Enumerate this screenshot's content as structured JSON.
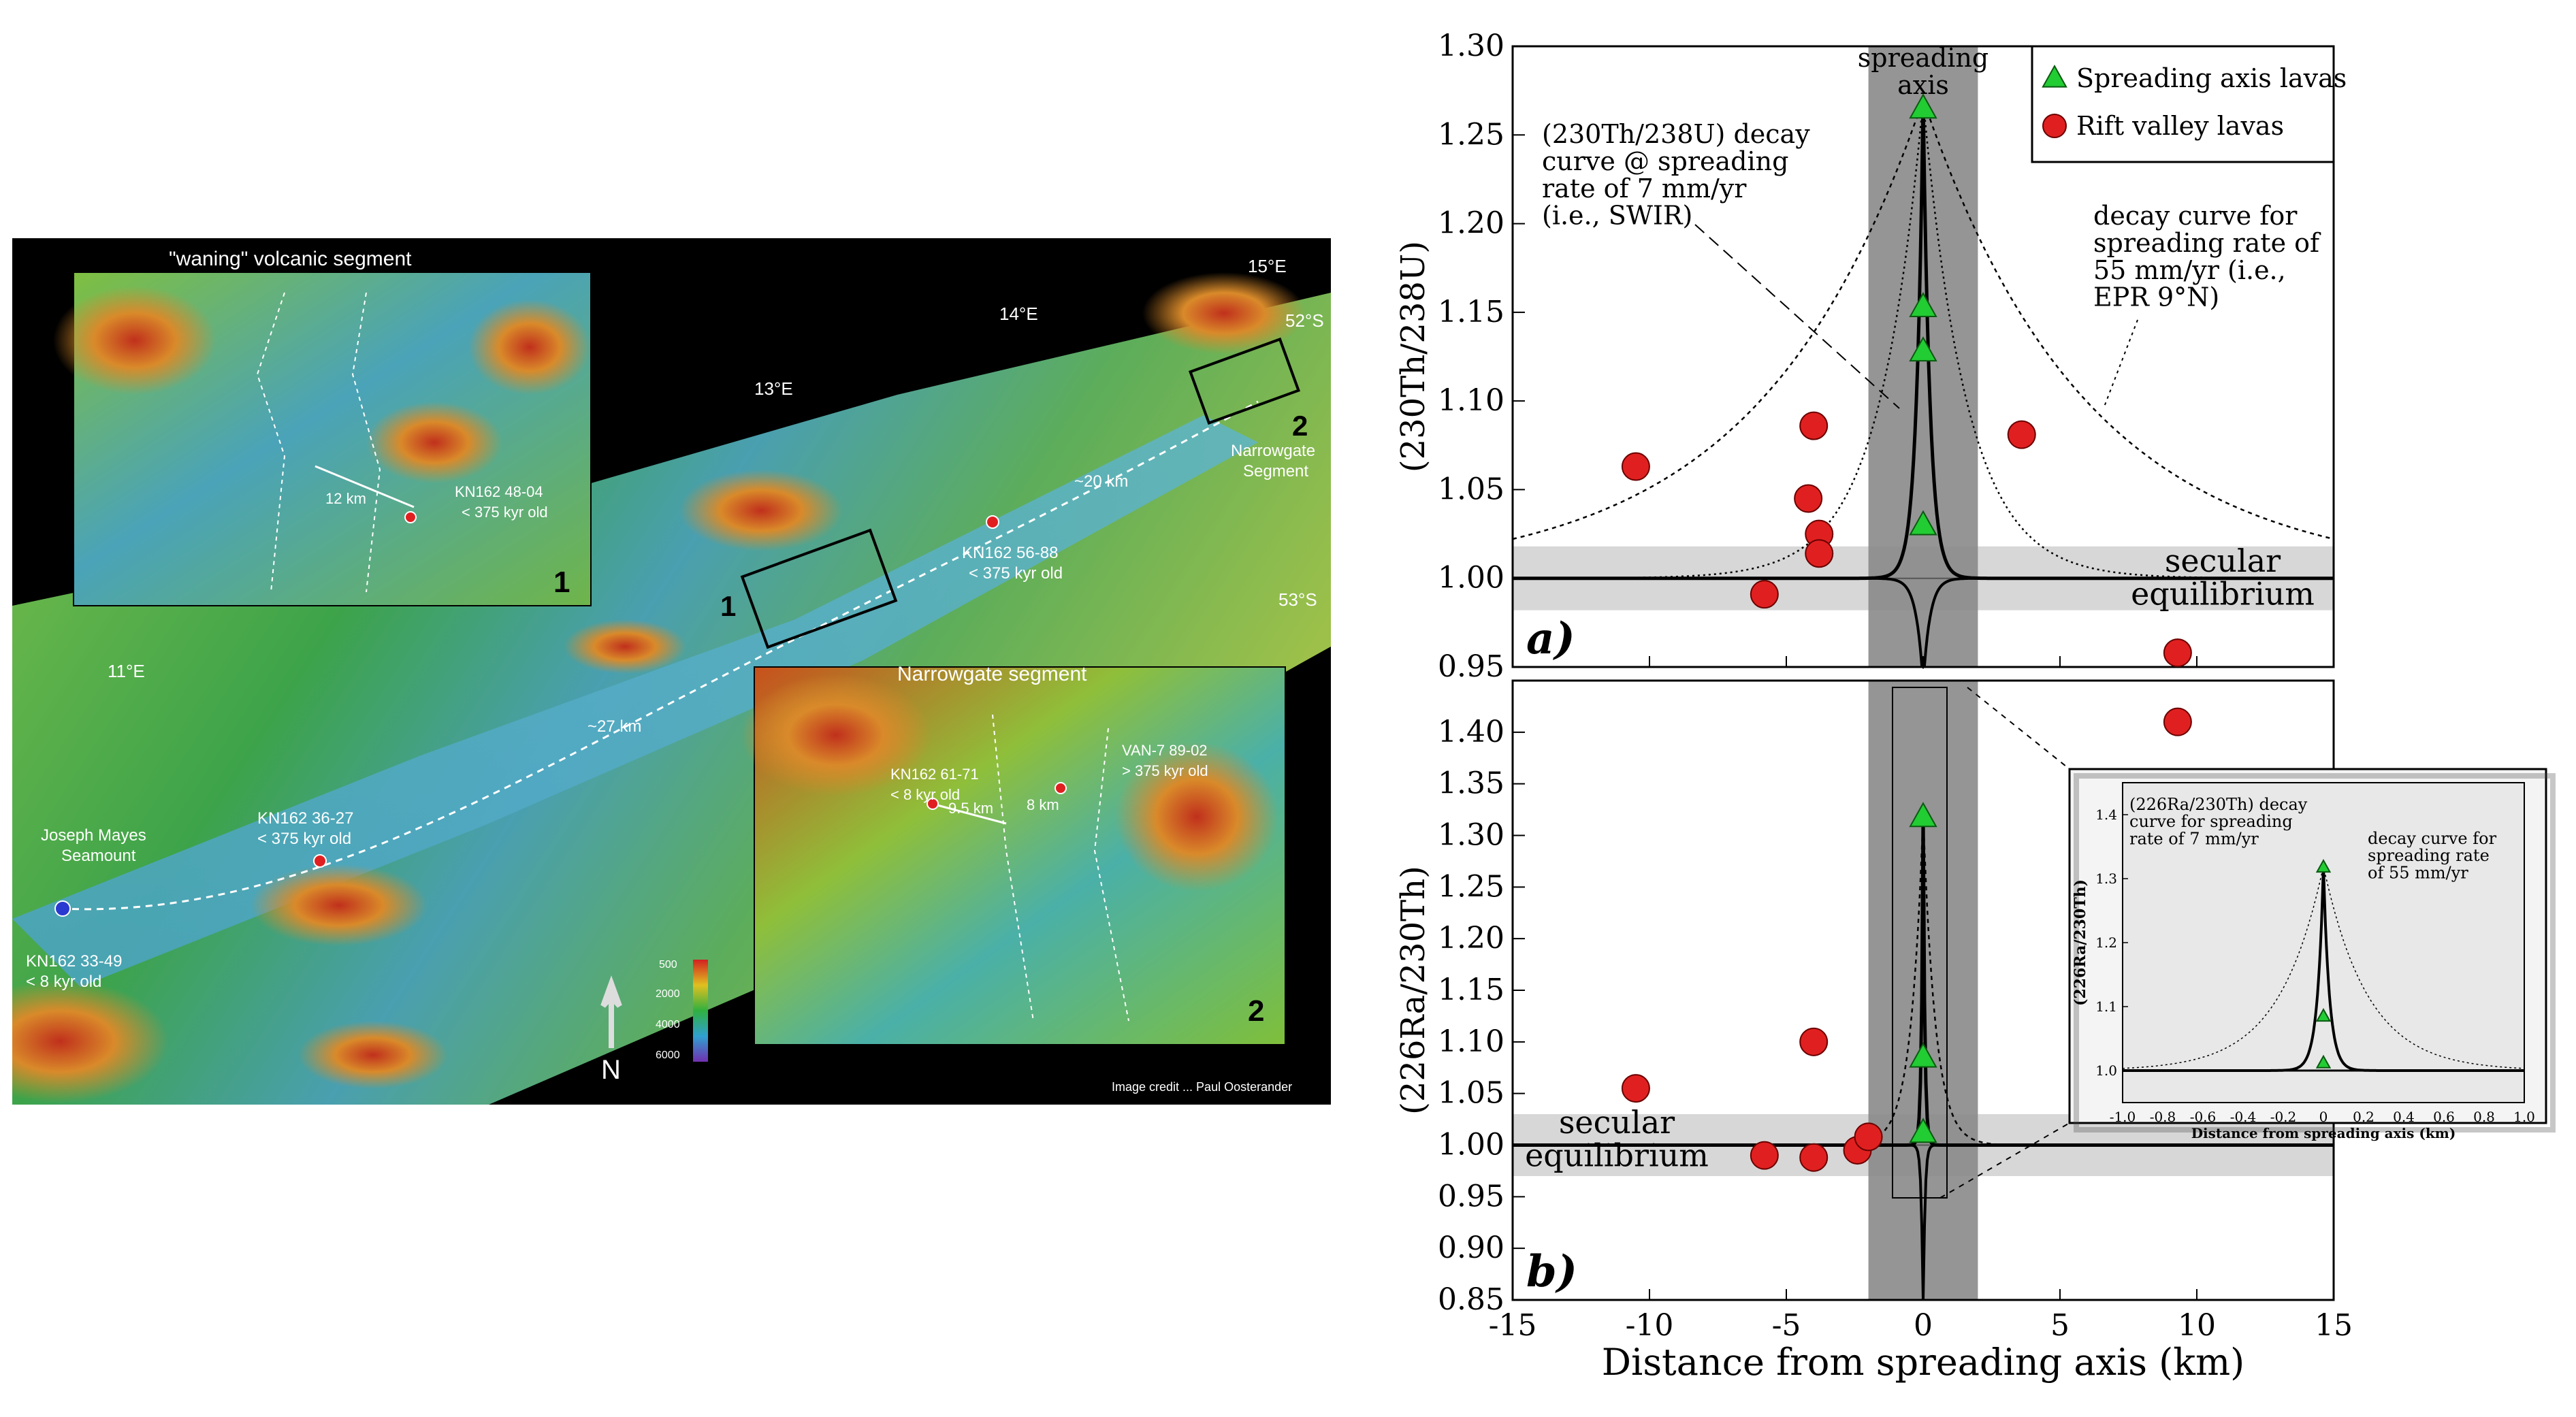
{
  "map": {
    "segment_labels": {
      "waning": "\"waning\" volcanic segment",
      "narrowgate": "Narrowgate segment",
      "narrowgate_main": "Narrowgate\nSegment"
    },
    "longitudes": [
      "11°E",
      "13°E",
      "14°E",
      "15°E"
    ],
    "latitudes": [
      "52°S",
      "53°S"
    ],
    "box_numbers": [
      "1",
      "2"
    ],
    "distances": [
      "12 km",
      "~20 km",
      "~27 km",
      "9.5 km",
      "8 km"
    ],
    "samples": [
      {
        "id": "KN162 48-04",
        "age": "< 375 kyr old"
      },
      {
        "id": "KN162 56-88",
        "age": "< 375 kyr old"
      },
      {
        "id": "KN162 36-27",
        "age": "< 375 kyr old"
      },
      {
        "id": "KN162 33-49",
        "age": "< 8 kyr old"
      },
      {
        "id": "KN162 61-71",
        "age": "< 8 kyr old"
      },
      {
        "id": "VAN-7 89-02",
        "age": "> 375 kyr old"
      }
    ],
    "seamount": "Joseph Mayes\nSeamount",
    "north_label": "N",
    "depth_scale": [
      "500",
      "2000",
      "4000",
      "6000"
    ],
    "credit": "Image credit ... Paul Oosterander",
    "colors": {
      "background": "#000000",
      "high": "#c8391c",
      "mid": "#2fa84a",
      "low": "#3f8fb4"
    }
  },
  "chart_data": [
    {
      "type": "scatter",
      "panel_label": "a)",
      "ylabel": "(230Th/238U)",
      "xlabel": "",
      "xlim": [
        -15,
        15
      ],
      "ylim": [
        0.95,
        1.3
      ],
      "yticks": [
        "0.95",
        "1.00",
        "1.05",
        "1.10",
        "1.15",
        "1.20",
        "1.25",
        "1.30"
      ],
      "axis_top_label": "spreading\naxis",
      "secular_label": "secular\nequilibrium",
      "legend": [
        {
          "name": "Spreading axis lavas",
          "marker": "triangle",
          "color": "#22cc33"
        },
        {
          "name": "Rift valley lavas",
          "marker": "circle",
          "color": "#e02020"
        }
      ],
      "legend_position": "top-right",
      "annotations": [
        "(230Th/238U) decay\ncurve @ spreading\nrate of 7 mm/yr\n(i.e., SWIR)",
        "decay curve for\nspreading rate of\n55 mm/yr (i.e.,\nEPR 9°N)"
      ],
      "series": [
        {
          "name": "Spreading axis lavas",
          "points": [
            [
              0,
              1.265
            ],
            [
              0,
              1.153
            ],
            [
              0,
              1.128
            ],
            [
              0,
              1.03
            ]
          ]
        },
        {
          "name": "Rift valley lavas",
          "points": [
            [
              -10.5,
              1.063
            ],
            [
              -4.0,
              1.086
            ],
            [
              -4.2,
              1.045
            ],
            [
              -3.8,
              1.025
            ],
            [
              -3.8,
              1.014
            ],
            [
              -5.8,
              0.991
            ],
            [
              3.6,
              1.081
            ],
            [
              9.3,
              0.958
            ]
          ]
        }
      ]
    },
    {
      "type": "scatter",
      "panel_label": "b)",
      "ylabel": "(226Ra/230Th)",
      "xlabel": "Distance from spreading axis (km)",
      "xlim": [
        -15,
        15
      ],
      "xticks": [
        "-15",
        "-10",
        "-5",
        "0",
        "5",
        "10",
        "15"
      ],
      "ylim": [
        0.85,
        1.45
      ],
      "yticks": [
        "0.85",
        "0.90",
        "0.95",
        "1.00",
        "1.05",
        "1.10",
        "1.15",
        "1.20",
        "1.25",
        "1.30",
        "1.35",
        "1.40"
      ],
      "secular_label": "secular\nequilibrium",
      "series": [
        {
          "name": "Spreading axis lavas",
          "points": [
            [
              0,
              1.318
            ],
            [
              0,
              1.085
            ],
            [
              0,
              1.012
            ]
          ]
        },
        {
          "name": "Rift valley lavas",
          "points": [
            [
              -10.5,
              1.055
            ],
            [
              -4.0,
              1.1
            ],
            [
              -5.8,
              0.99
            ],
            [
              -4.0,
              0.988
            ],
            [
              -2.4,
              0.995
            ],
            [
              -2.0,
              1.008
            ],
            [
              9.3,
              1.41
            ]
          ]
        }
      ],
      "inset": {
        "ylabel": "(226Ra/230Th)",
        "xlabel": "Distance from spreading axis (km)",
        "xlim": [
          -1.0,
          1.0
        ],
        "xticks": [
          "-1.0",
          "-0.8",
          "-0.6",
          "-0.4",
          "-0.2",
          "0",
          "0.2",
          "0.4",
          "0.6",
          "0.8",
          "1.0"
        ],
        "ylim": [
          0.95,
          1.45
        ],
        "yticks": [
          "1.0",
          "1.1",
          "1.2",
          "1.3",
          "1.4"
        ],
        "annotations": [
          "(226Ra/230Th) decay\ncurve for spreading\nrate of 7 mm/yr",
          "decay curve for\nspreading rate\nof 55 mm/yr"
        ],
        "points": [
          [
            0,
            1.318
          ],
          [
            0,
            1.085
          ],
          [
            0,
            1.012
          ]
        ]
      }
    }
  ]
}
